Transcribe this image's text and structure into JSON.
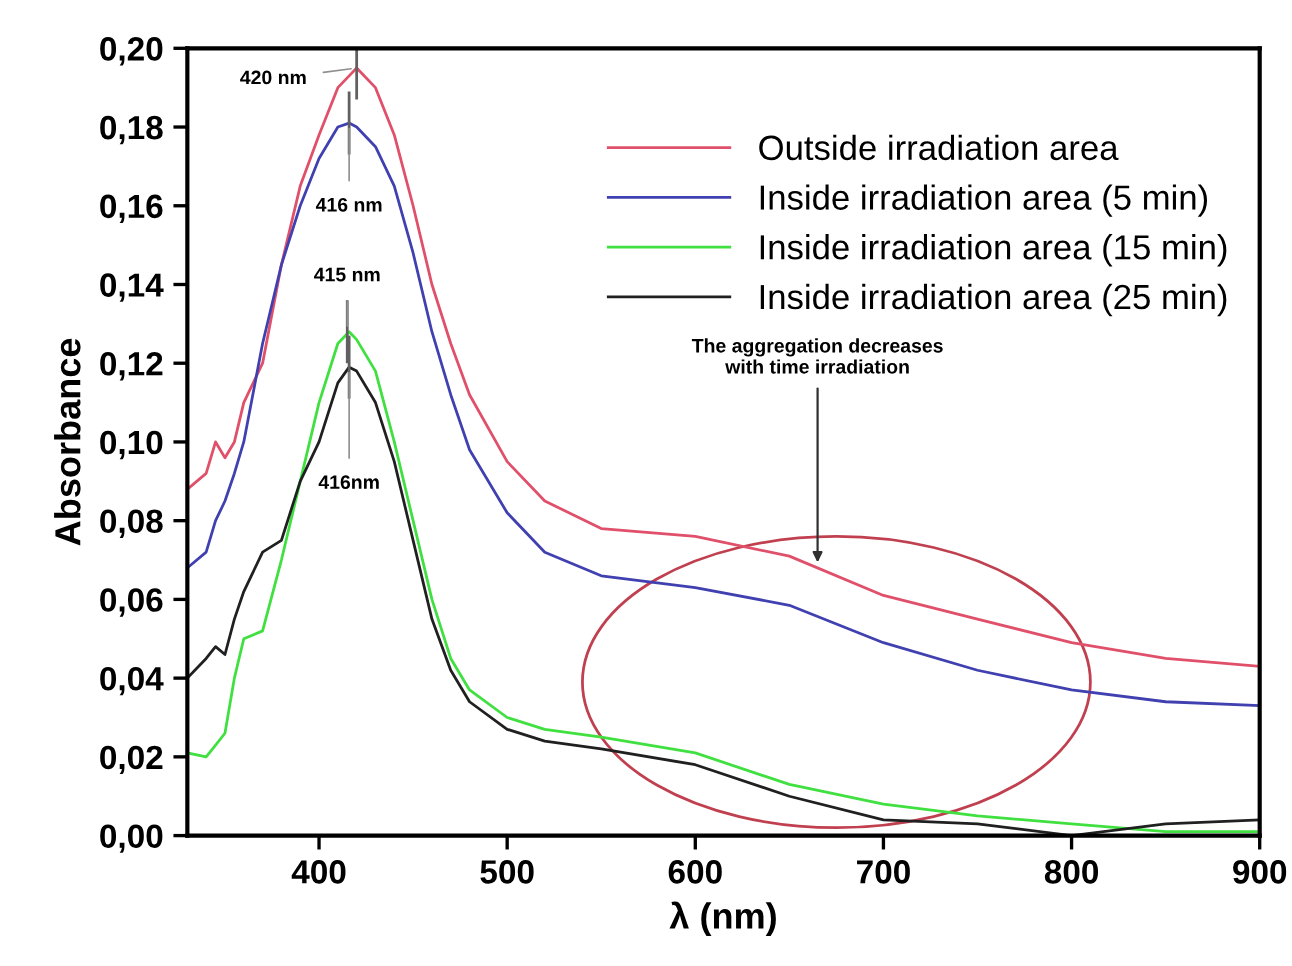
{
  "chart_data": {
    "type": "line",
    "xlabel": "λ (nm)",
    "ylabel": "Absorbance",
    "xlim": [
      330,
      900
    ],
    "xticks": [
      400,
      500,
      600,
      700,
      800,
      900
    ],
    "ylim": [
      0,
      0.2
    ],
    "yticks": [
      {
        "value": 0,
        "label": "0,00"
      },
      {
        "value": 0.02,
        "label": "0,02"
      },
      {
        "value": 0.04,
        "label": "0,04"
      },
      {
        "value": 0.06,
        "label": "0,06"
      },
      {
        "value": 0.08,
        "label": "0,08"
      },
      {
        "value": 0.1,
        "label": "0,10"
      },
      {
        "value": 0.12,
        "label": "0,12"
      },
      {
        "value": 0.14,
        "label": "0,14"
      },
      {
        "value": 0.16,
        "label": "0,16"
      },
      {
        "value": 0.18,
        "label": "0,18"
      },
      {
        "value": 0.2,
        "label": "0,20"
      }
    ],
    "grid": false,
    "legend": "top right",
    "marker": "none",
    "line_style": "solid",
    "x": [
      330,
      340,
      345,
      350,
      355,
      360,
      370,
      380,
      390,
      400,
      410,
      416,
      420,
      430,
      440,
      450,
      460,
      470,
      480,
      500,
      520,
      550,
      600,
      650,
      700,
      750,
      800,
      850,
      900
    ],
    "series": [
      {
        "name": "Outside irradiation area",
        "color": "#e0506a",
        "values": [
          0.088,
          0.092,
          0.1,
          0.096,
          0.1,
          0.11,
          0.12,
          0.145,
          0.165,
          0.178,
          0.19,
          0.193,
          0.195,
          0.19,
          0.178,
          0.16,
          0.14,
          0.125,
          0.112,
          0.095,
          0.085,
          0.078,
          0.076,
          0.071,
          0.061,
          0.055,
          0.049,
          0.045,
          0.043
        ]
      },
      {
        "name": "Inside irradiation area (5 min)",
        "color": "#4040b0",
        "values": [
          0.068,
          0.072,
          0.08,
          0.085,
          0.092,
          0.1,
          0.125,
          0.145,
          0.16,
          0.172,
          0.18,
          0.181,
          0.18,
          0.175,
          0.165,
          0.148,
          0.128,
          0.112,
          0.098,
          0.082,
          0.072,
          0.066,
          0.063,
          0.0585,
          0.049,
          0.042,
          0.037,
          0.034,
          0.033
        ]
      },
      {
        "name": "Inside irradiation area (15 min)",
        "color": "#40e040",
        "values": [
          0.021,
          0.02,
          0.023,
          0.026,
          0.04,
          0.05,
          0.052,
          0.07,
          0.09,
          0.11,
          0.125,
          0.128,
          0.126,
          0.118,
          0.1,
          0.08,
          0.06,
          0.045,
          0.037,
          0.03,
          0.027,
          0.025,
          0.021,
          0.013,
          0.008,
          0.005,
          0.003,
          0.001,
          0.001
        ]
      },
      {
        "name": "Inside irradiation area (25 min)",
        "color": "#202020",
        "values": [
          0.04,
          0.045,
          0.048,
          0.046,
          0.055,
          0.062,
          0.072,
          0.075,
          0.09,
          0.1,
          0.115,
          0.119,
          0.118,
          0.11,
          0.095,
          0.075,
          0.055,
          0.042,
          0.034,
          0.027,
          0.024,
          0.022,
          0.018,
          0.01,
          0.004,
          0.003,
          0.0,
          0.003,
          0.004
        ]
      }
    ],
    "annotations": [
      {
        "text": "420 nm",
        "x": 420,
        "y": 0.195
      },
      {
        "text": "416 nm",
        "x": 416,
        "y": 0.181
      },
      {
        "text": "415 nm",
        "x": 415,
        "y": 0.128
      },
      {
        "text": "416nm",
        "x": 416,
        "y": 0.119
      },
      {
        "text": "The aggregation decreases\nwith time irradiation",
        "x": 665,
        "y": 0.068
      }
    ]
  }
}
